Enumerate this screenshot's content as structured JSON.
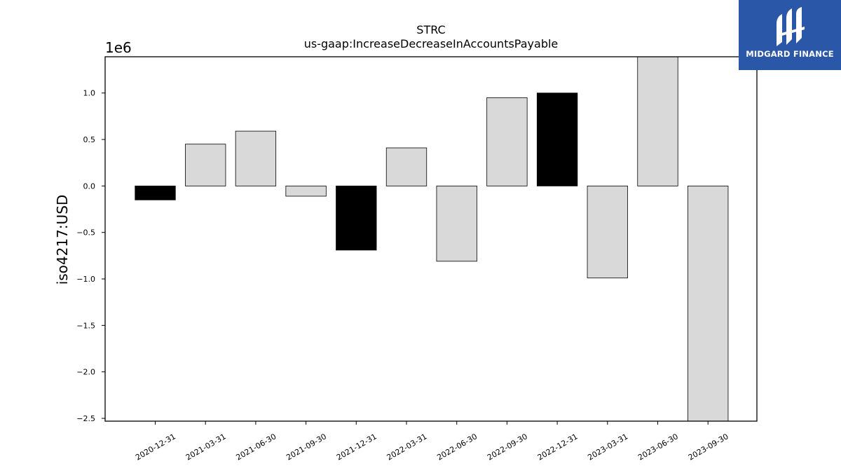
{
  "chart_data": {
    "type": "bar",
    "title": "STRC",
    "subtitle": "us-gaap:IncreaseDecreaseInAccountsPayable",
    "ylabel": "iso4217:USD",
    "xlabel": "",
    "scale_label": "1e6",
    "ylim": [
      -2.53,
      1.39
    ],
    "yticks": [
      1.0,
      0.5,
      0.0,
      -0.5,
      -1.0,
      -1.5,
      -2.0,
      -2.5
    ],
    "ytick_labels": [
      "1.0",
      "0.5",
      "0.0",
      "−0.5",
      "−1.0",
      "−1.5",
      "−2.0",
      "−2.5"
    ],
    "categories": [
      "2020-12-31",
      "2021-03-31",
      "2021-06-30",
      "2021-09-30",
      "2021-12-31",
      "2022-03-31",
      "2022-06-30",
      "2022-09-30",
      "2022-12-31",
      "2023-03-31",
      "2023-06-30",
      "2023-09-30"
    ],
    "values": [
      -0.15,
      0.45,
      0.59,
      -0.11,
      -0.69,
      0.41,
      -0.81,
      0.95,
      1.0,
      -0.99,
      1.39,
      -2.53
    ],
    "bar_colors": [
      "#000000",
      "#d9d9d9",
      "#d9d9d9",
      "#d9d9d9",
      "#000000",
      "#d9d9d9",
      "#d9d9d9",
      "#d9d9d9",
      "#000000",
      "#d9d9d9",
      "#d9d9d9",
      "#d9d9d9"
    ],
    "grid": false,
    "legend": "none"
  },
  "logo": {
    "text": "MIDGARD FINANCE",
    "background": "#2b57a8"
  }
}
